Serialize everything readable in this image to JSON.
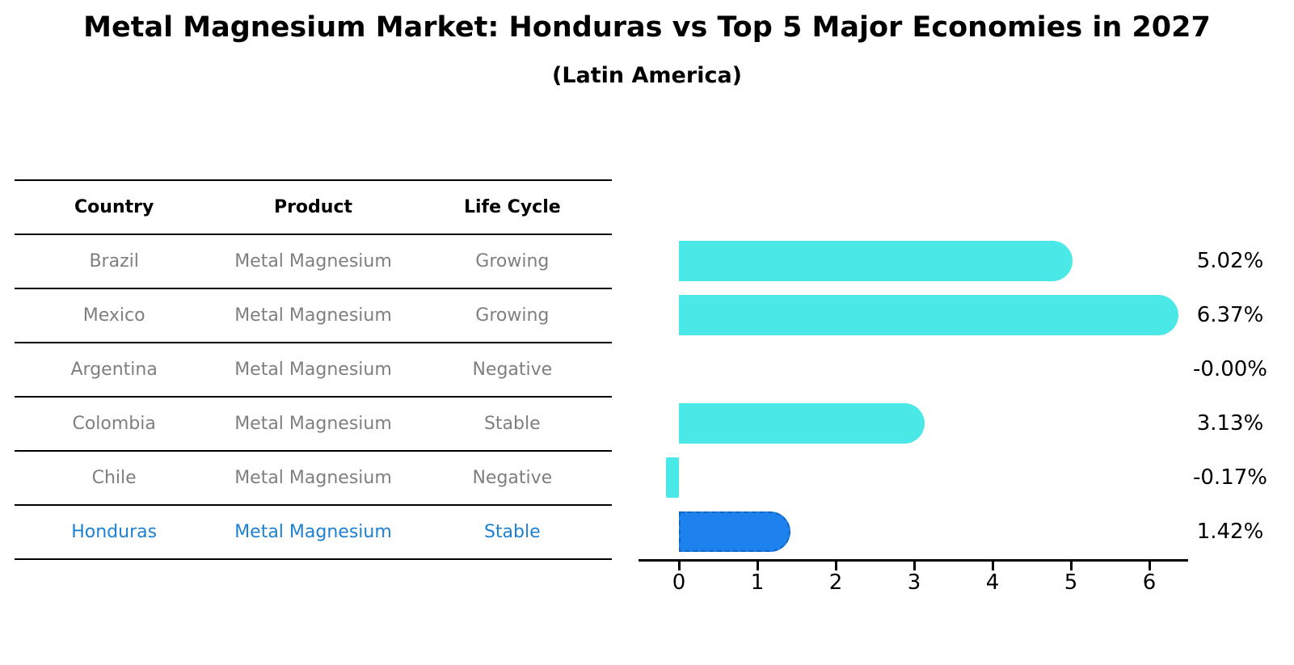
{
  "title": "Metal Magnesium Market: Honduras vs Top 5 Major Economies in 2027",
  "subtitle": "(Latin America)",
  "table": {
    "headers": [
      "Country",
      "Product",
      "Life Cycle"
    ],
    "rows": [
      {
        "country": "Brazil",
        "product": "Metal Magnesium",
        "life_cycle": "Growing",
        "highlight": false
      },
      {
        "country": "Mexico",
        "product": "Metal Magnesium",
        "life_cycle": "Growing",
        "highlight": false
      },
      {
        "country": "Argentina",
        "product": "Metal Magnesium",
        "life_cycle": "Negative",
        "highlight": false
      },
      {
        "country": "Colombia",
        "product": "Metal Magnesium",
        "life_cycle": "Stable",
        "highlight": false
      },
      {
        "country": "Chile",
        "product": "Metal Magnesium",
        "life_cycle": "Negative",
        "highlight": false
      },
      {
        "country": "Honduras",
        "product": "Metal Magnesium",
        "life_cycle": "Stable",
        "highlight": true
      }
    ]
  },
  "chart_data": {
    "type": "bar",
    "orientation": "horizontal",
    "title": "Metal Magnesium Market: Honduras vs Top 5 Major Economies in 2027",
    "subtitle": "(Latin America)",
    "categories": [
      "Brazil",
      "Mexico",
      "Argentina",
      "Colombia",
      "Chile",
      "Honduras"
    ],
    "values": [
      5.02,
      6.37,
      -0.0,
      3.13,
      -0.17,
      1.42
    ],
    "value_labels": [
      "5.02%",
      "6.37%",
      "-0.00%",
      "3.13%",
      "-0.17%",
      "1.42%"
    ],
    "xlabel": "",
    "ylabel": "",
    "x_ticks": [
      0,
      1,
      2,
      3,
      4,
      5,
      6
    ],
    "xlim": [
      -0.55,
      6.6
    ],
    "grid": false,
    "legend": false,
    "highlight_category": "Honduras",
    "colors": {
      "bar_default": "#4ae8e6",
      "bar_highlight": "#1e82ee",
      "highlight_border": "#1565c0",
      "highlight_text": "#1e80d2",
      "row_text": "#7f7f7f",
      "header_text": "#000000"
    }
  }
}
